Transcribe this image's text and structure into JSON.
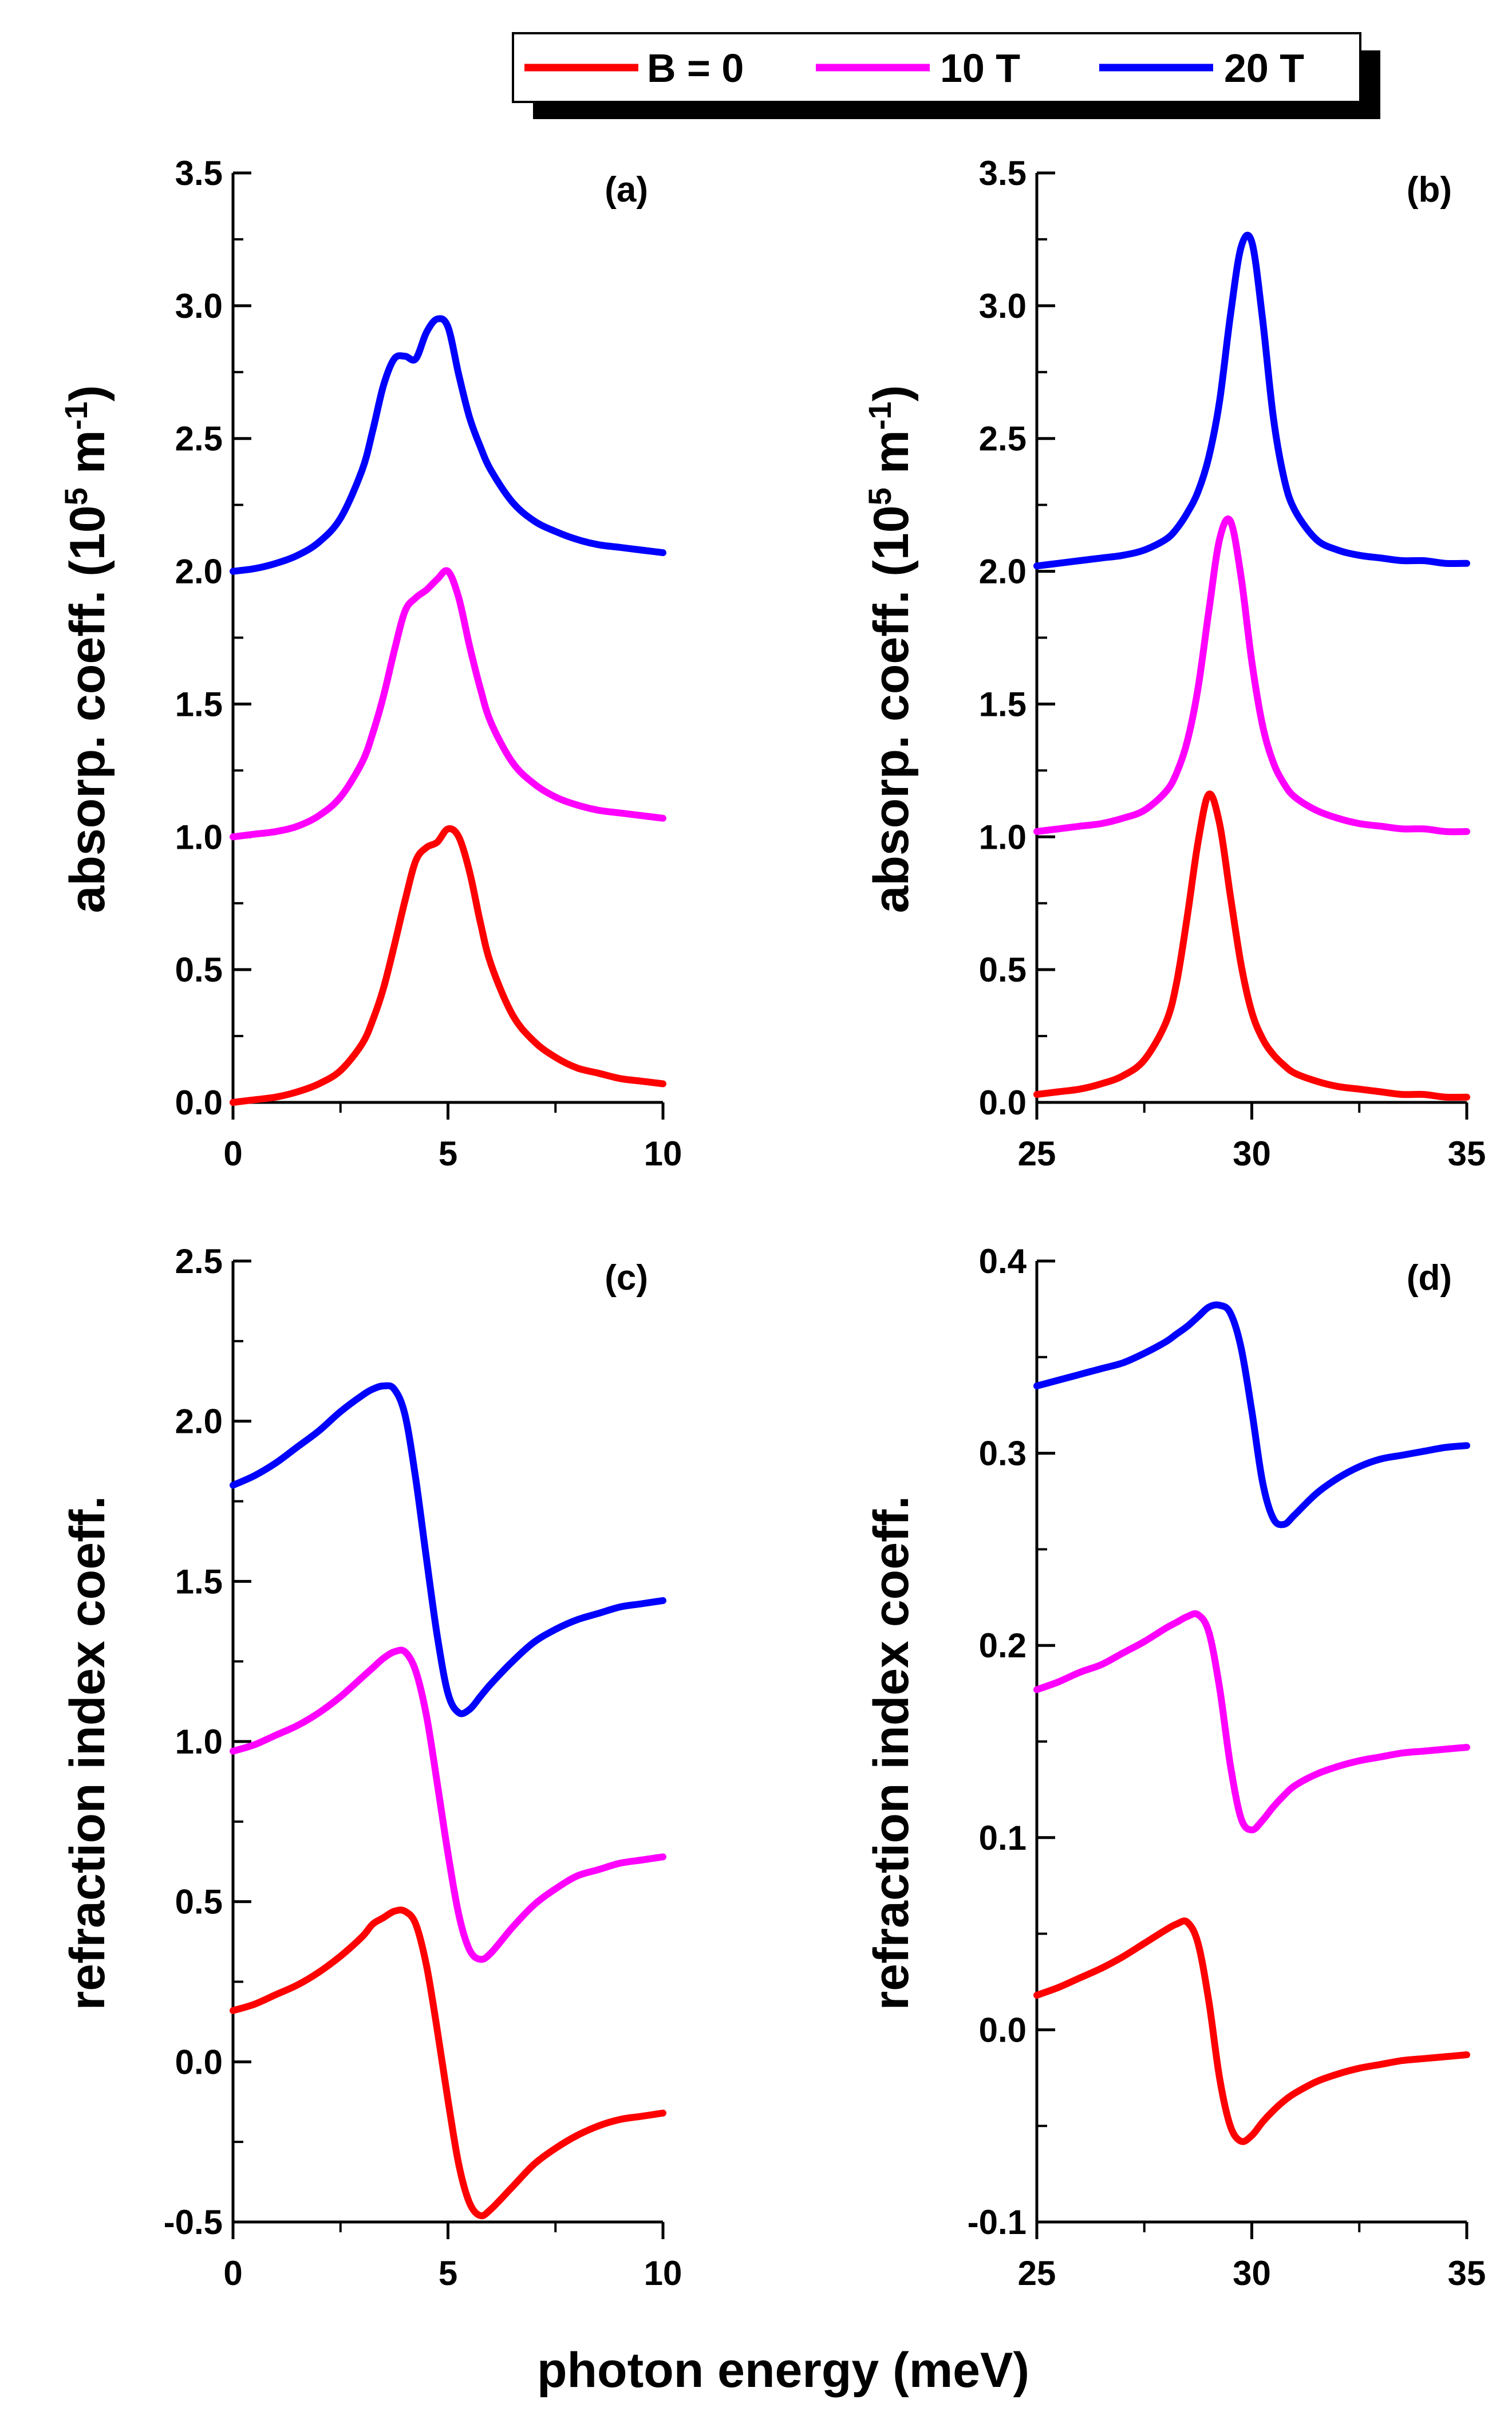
{
  "figure": {
    "xlabel": "photon energy (meV)"
  },
  "legend": {
    "entries": [
      {
        "label": "B = 0",
        "color": "#ff0000"
      },
      {
        "label": "10 T",
        "color": "#ff00ff"
      },
      {
        "label": "20 T",
        "color": "#0000ff"
      }
    ]
  },
  "chart_data": [
    {
      "type": "line",
      "panel": "(a)",
      "ylabel": "absorp. coeff. (10^5 m^-1)",
      "ylabel_parts": {
        "pre": "absorp. coeff. (10",
        "sup1": "5",
        "mid": " m",
        "sup2": "-1",
        "post": ")"
      },
      "xlim": [
        0,
        10
      ],
      "ylim": [
        0,
        3.5
      ],
      "xticks": [
        0,
        5,
        10
      ],
      "xtick_labels": [
        "0",
        "5",
        "10"
      ],
      "yticks": [
        0,
        0.5,
        1,
        1.5,
        2,
        2.5,
        3,
        3.5
      ],
      "ytick_labels": [
        "0.0",
        "0.5",
        "1.0",
        "1.5",
        "2.0",
        "2.5",
        "3.0",
        "3.5"
      ],
      "x": [
        0,
        0.5,
        1,
        1.5,
        2,
        2.5,
        3,
        3.25,
        3.5,
        3.75,
        4,
        4.25,
        4.5,
        4.75,
        5,
        5.25,
        5.5,
        5.75,
        6,
        6.5,
        7,
        7.5,
        8,
        8.5,
        9,
        9.5,
        10
      ],
      "series": [
        {
          "name": "B = 0",
          "color": "#ff0000",
          "values": [
            0.0,
            0.01,
            0.02,
            0.04,
            0.07,
            0.12,
            0.22,
            0.31,
            0.43,
            0.59,
            0.76,
            0.91,
            0.96,
            0.98,
            1.03,
            1.0,
            0.87,
            0.68,
            0.52,
            0.33,
            0.23,
            0.17,
            0.13,
            0.11,
            0.09,
            0.08,
            0.07
          ]
        },
        {
          "name": "10 T",
          "color": "#ff00ff",
          "values": [
            1.0,
            1.01,
            1.02,
            1.04,
            1.08,
            1.15,
            1.28,
            1.39,
            1.53,
            1.7,
            1.85,
            1.9,
            1.93,
            1.97,
            2.0,
            1.9,
            1.72,
            1.56,
            1.43,
            1.28,
            1.2,
            1.15,
            1.12,
            1.1,
            1.09,
            1.08,
            1.07
          ]
        },
        {
          "name": "20 T",
          "color": "#0000ff",
          "values": [
            2.0,
            2.01,
            2.03,
            2.06,
            2.11,
            2.2,
            2.38,
            2.53,
            2.7,
            2.8,
            2.81,
            2.8,
            2.9,
            2.95,
            2.92,
            2.74,
            2.58,
            2.47,
            2.38,
            2.26,
            2.19,
            2.15,
            2.12,
            2.1,
            2.09,
            2.08,
            2.07
          ]
        }
      ]
    },
    {
      "type": "line",
      "panel": "(b)",
      "ylabel": "absorp. coeff. (10^5 m^-1)",
      "ylabel_parts": {
        "pre": "absorp. coeff. (10",
        "sup1": "5",
        "mid": " m",
        "sup2": "-1",
        "post": ")"
      },
      "xlim": [
        25,
        35
      ],
      "ylim": [
        0,
        3.5
      ],
      "xticks": [
        25,
        30,
        35
      ],
      "xtick_labels": [
        "25",
        "30",
        "35"
      ],
      "yticks": [
        0,
        0.5,
        1,
        1.5,
        2,
        2.5,
        3,
        3.5
      ],
      "ytick_labels": [
        "0.0",
        "0.5",
        "1.0",
        "1.5",
        "2.0",
        "2.5",
        "3.0",
        "3.5"
      ],
      "x": [
        25,
        25.5,
        26,
        26.5,
        27,
        27.5,
        28,
        28.25,
        28.5,
        28.75,
        29,
        29.25,
        29.5,
        29.75,
        30,
        30.25,
        30.5,
        30.75,
        31,
        31.5,
        32,
        32.5,
        33,
        33.5,
        34,
        34.5,
        35
      ],
      "series": [
        {
          "name": "B = 0",
          "color": "#ff0000",
          "values": [
            0.03,
            0.04,
            0.05,
            0.07,
            0.1,
            0.16,
            0.3,
            0.45,
            0.7,
            0.98,
            1.16,
            1.05,
            0.78,
            0.52,
            0.34,
            0.24,
            0.18,
            0.14,
            0.11,
            0.08,
            0.06,
            0.05,
            0.04,
            0.03,
            0.03,
            0.02,
            0.02
          ]
        },
        {
          "name": "10 T",
          "color": "#ff00ff",
          "values": [
            1.02,
            1.03,
            1.04,
            1.05,
            1.07,
            1.1,
            1.17,
            1.24,
            1.36,
            1.56,
            1.85,
            2.12,
            2.19,
            1.98,
            1.66,
            1.42,
            1.28,
            1.2,
            1.15,
            1.1,
            1.07,
            1.05,
            1.04,
            1.03,
            1.03,
            1.02,
            1.02
          ]
        },
        {
          "name": "20 T",
          "color": "#0000ff",
          "values": [
            2.02,
            2.03,
            2.04,
            2.05,
            2.06,
            2.08,
            2.12,
            2.16,
            2.22,
            2.3,
            2.43,
            2.64,
            2.96,
            3.22,
            3.24,
            2.95,
            2.58,
            2.35,
            2.23,
            2.12,
            2.08,
            2.06,
            2.05,
            2.04,
            2.04,
            2.03,
            2.03
          ]
        }
      ]
    },
    {
      "type": "line",
      "panel": "(c)",
      "ylabel": "refraction index coeff.",
      "xlim": [
        0,
        10
      ],
      "ylim": [
        -0.5,
        2.5
      ],
      "xticks": [
        0,
        5,
        10
      ],
      "xtick_labels": [
        "0",
        "5",
        "10"
      ],
      "yticks": [
        -0.5,
        0,
        0.5,
        1,
        1.5,
        2,
        2.5
      ],
      "ytick_labels": [
        "-0.5",
        "0.0",
        "0.5",
        "1.0",
        "1.5",
        "2.0",
        "2.5"
      ],
      "x": [
        0,
        0.5,
        1,
        1.5,
        2,
        2.5,
        3,
        3.25,
        3.5,
        3.75,
        4,
        4.25,
        4.5,
        4.75,
        5,
        5.25,
        5.5,
        5.75,
        6,
        6.5,
        7,
        7.5,
        8,
        8.5,
        9,
        9.5,
        10
      ],
      "series": [
        {
          "name": "B = 0",
          "color": "#ff0000",
          "values": [
            0.16,
            0.18,
            0.21,
            0.24,
            0.28,
            0.33,
            0.39,
            0.43,
            0.45,
            0.47,
            0.47,
            0.43,
            0.3,
            0.1,
            -0.12,
            -0.32,
            -0.44,
            -0.48,
            -0.46,
            -0.39,
            -0.32,
            -0.27,
            -0.23,
            -0.2,
            -0.18,
            -0.17,
            -0.16
          ]
        },
        {
          "name": "10 T",
          "color": "#ff00ff",
          "values": [
            0.97,
            0.99,
            1.02,
            1.05,
            1.09,
            1.14,
            1.2,
            1.23,
            1.26,
            1.28,
            1.28,
            1.22,
            1.08,
            0.87,
            0.65,
            0.46,
            0.35,
            0.32,
            0.34,
            0.42,
            0.49,
            0.54,
            0.58,
            0.6,
            0.62,
            0.63,
            0.64
          ]
        },
        {
          "name": "20 T",
          "color": "#0000ff",
          "values": [
            1.8,
            1.83,
            1.87,
            1.92,
            1.97,
            2.03,
            2.08,
            2.1,
            2.11,
            2.1,
            2.02,
            1.82,
            1.57,
            1.33,
            1.15,
            1.09,
            1.1,
            1.14,
            1.18,
            1.25,
            1.31,
            1.35,
            1.38,
            1.4,
            1.42,
            1.43,
            1.44
          ]
        }
      ]
    },
    {
      "type": "line",
      "panel": "(d)",
      "ylabel": "refraction index coeff.",
      "xlim": [
        25,
        35
      ],
      "ylim": [
        -0.1,
        0.4
      ],
      "xticks": [
        25,
        30,
        35
      ],
      "xtick_labels": [
        "25",
        "30",
        "35"
      ],
      "yticks": [
        -0.1,
        0,
        0.1,
        0.2,
        0.3,
        0.4
      ],
      "ytick_labels": [
        "-0.1",
        "0.0",
        "0.1",
        "0.2",
        "0.3",
        "0.4"
      ],
      "x": [
        25,
        25.5,
        26,
        26.5,
        27,
        27.5,
        28,
        28.25,
        28.5,
        28.75,
        29,
        29.25,
        29.5,
        29.75,
        30,
        30.25,
        30.5,
        30.75,
        31,
        31.5,
        32,
        32.5,
        33,
        33.5,
        34,
        34.5,
        35
      ],
      "series": [
        {
          "name": "B = 0",
          "color": "#ff0000",
          "values": [
            0.018,
            0.022,
            0.027,
            0.032,
            0.038,
            0.045,
            0.052,
            0.055,
            0.056,
            0.045,
            0.015,
            -0.025,
            -0.05,
            -0.058,
            -0.055,
            -0.048,
            -0.042,
            -0.037,
            -0.033,
            -0.027,
            -0.023,
            -0.02,
            -0.018,
            -0.016,
            -0.015,
            -0.014,
            -0.013
          ]
        },
        {
          "name": "10 T",
          "color": "#ff00ff",
          "values": [
            0.177,
            0.181,
            0.186,
            0.19,
            0.196,
            0.202,
            0.209,
            0.212,
            0.215,
            0.216,
            0.207,
            0.178,
            0.138,
            0.11,
            0.104,
            0.109,
            0.116,
            0.122,
            0.127,
            0.133,
            0.137,
            0.14,
            0.142,
            0.144,
            0.145,
            0.146,
            0.147
          ]
        },
        {
          "name": "20 T",
          "color": "#0000ff",
          "values": [
            0.335,
            0.338,
            0.341,
            0.344,
            0.347,
            0.352,
            0.358,
            0.362,
            0.366,
            0.371,
            0.376,
            0.377,
            0.373,
            0.355,
            0.322,
            0.285,
            0.266,
            0.263,
            0.268,
            0.279,
            0.287,
            0.293,
            0.297,
            0.299,
            0.301,
            0.303,
            0.304
          ]
        }
      ]
    }
  ]
}
